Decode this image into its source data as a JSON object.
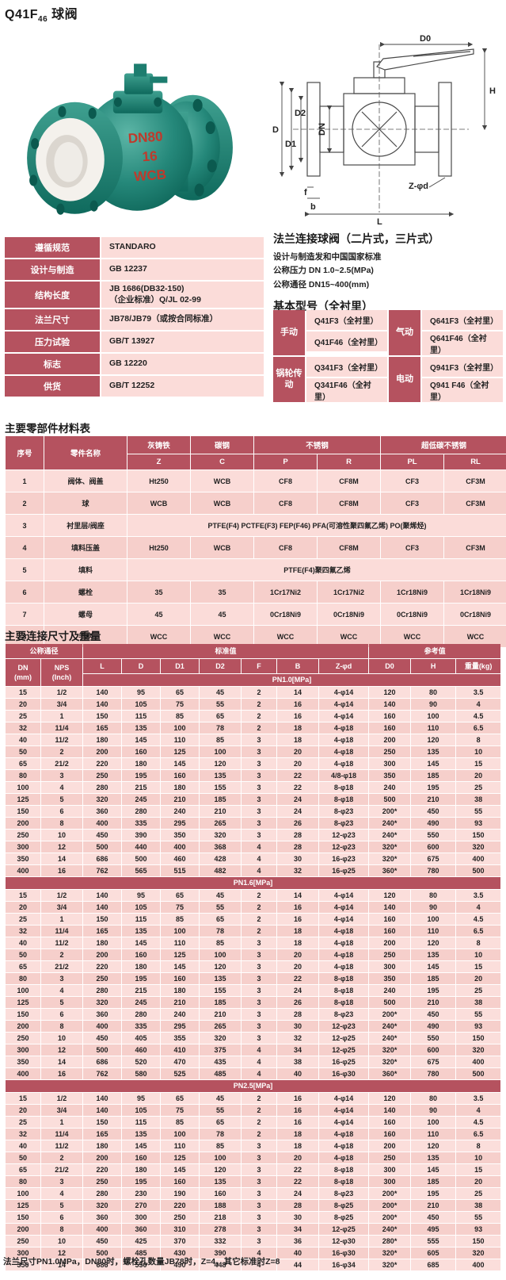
{
  "page_title": {
    "prefix": "Q41F",
    "sub": "46",
    "suffix": " 球阀"
  },
  "photo": {
    "markings": [
      "DN80",
      "16",
      "WCB"
    ]
  },
  "drawing": {
    "labels": [
      "D0",
      "H",
      "D",
      "D1",
      "D2",
      "DN",
      "Z-φd",
      "f",
      "b",
      "L"
    ]
  },
  "spec_table": {
    "rows": [
      {
        "label": "遵循规范",
        "value": [
          "STANDARO"
        ]
      },
      {
        "label": "设计与制造",
        "value": [
          "GB 12237"
        ]
      },
      {
        "label": "结构长度",
        "value": [
          "JB 1686(DB32-150)",
          "（企业标准）Q/JL 02-99"
        ]
      },
      {
        "label": "法兰尺寸",
        "value": [
          "JB78/JB79（或按合同标准）"
        ]
      },
      {
        "label": "压力试验",
        "value": [
          "GB/T 13927"
        ]
      },
      {
        "label": "标志",
        "value": [
          "GB 12220"
        ]
      },
      {
        "label": "供货",
        "value": [
          "GB/T 12252"
        ]
      }
    ]
  },
  "intro": {
    "heading": "法兰连接球阀（二片式，三片式）",
    "lines": [
      "设计与制造发和中国国家标准",
      "公称压力 DN 1.0~2.5(MPa)",
      "公称通径 DN15~400(mm)"
    ],
    "models_heading": "基本型号（全衬里）"
  },
  "models": {
    "groups": [
      {
        "label": "手动",
        "items": [
          "Q41F3（全衬里）",
          "Q41F46（全衬里）"
        ]
      },
      {
        "label": "气动",
        "items": [
          "Q641F3（全衬里）",
          "Q641F46（全衬里）"
        ]
      },
      {
        "label": "锅轮传动",
        "items": [
          "Q341F3（全衬里）",
          "Q341F46（全衬里）"
        ]
      },
      {
        "label": "电动",
        "items": [
          "Q941F3（全衬里）",
          "Q941 F46（全衬里）"
        ]
      }
    ]
  },
  "materials": {
    "title": "主要零部件材料表",
    "col_no": "序号",
    "col_name": "零件名称",
    "group_headers": [
      "灰铸铁",
      "碳钢",
      "不锈钢",
      "超低碳不锈钢"
    ],
    "code_headers": [
      "Z",
      "C",
      "P",
      "R",
      "PL",
      "RL"
    ],
    "rows": [
      {
        "no": "1",
        "name": "阀体、阀盖",
        "values": [
          "Ht250",
          "WCB",
          "CF8",
          "CF8M",
          "CF3",
          "CF3M"
        ]
      },
      {
        "no": "2",
        "name": "球",
        "values": [
          "WCB",
          "WCB",
          "CF8",
          "CF8M",
          "CF3",
          "CF3M"
        ]
      },
      {
        "no": "3",
        "name": "衬里层/阀座",
        "span": "PTFE(F4)  PCTFE(F3)  FEP(F46)    PFA(可溶性聚四氟乙烯)  PO(聚烯烃)"
      },
      {
        "no": "4",
        "name": "填料压盖",
        "values": [
          "Ht250",
          "WCB",
          "CF8",
          "CF8M",
          "CF3",
          "CF3M"
        ]
      },
      {
        "no": "5",
        "name": "填料",
        "span": "PTFE(F4)聚四氟乙烯"
      },
      {
        "no": "6",
        "name": "螺栓",
        "values": [
          "35",
          "35",
          "1Cr17Ni2",
          "1Cr17Ni2",
          "1Cr18Ni9",
          "1Cr18Ni9"
        ]
      },
      {
        "no": "7",
        "name": "螺母",
        "values": [
          "45",
          "45",
          "0Cr18Ni9",
          "0Cr18Ni9",
          "0Cr18Ni9",
          "0Cr18Ni9"
        ]
      },
      {
        "no": "8",
        "name": "手柄",
        "values": [
          "WCC",
          "WCC",
          "WCC",
          "WCC",
          "WCC",
          "WCC"
        ]
      }
    ]
  },
  "dims": {
    "title": "主要连接尺寸及重量",
    "groups": [
      "公称通径",
      "标准值",
      "参考值"
    ],
    "dn": [
      "DN",
      "(mm)"
    ],
    "nps": [
      "NPS",
      "(Inch)"
    ],
    "cols": [
      "L",
      "D",
      "D1",
      "D2",
      "F",
      "B",
      "Z-φd",
      "D0",
      "H",
      "重量(kg)"
    ],
    "sections": [
      {
        "band": "PN1.0[MPa]",
        "rows": [
          [
            "15",
            "1/2",
            "140",
            "95",
            "65",
            "45",
            "2",
            "14",
            "4-φ14",
            "120",
            "80",
            "3.5"
          ],
          [
            "20",
            "3/4",
            "140",
            "105",
            "75",
            "55",
            "2",
            "16",
            "4-φ14",
            "140",
            "90",
            "4"
          ],
          [
            "25",
            "1",
            "150",
            "115",
            "85",
            "65",
            "2",
            "16",
            "4-φ14",
            "160",
            "100",
            "4.5"
          ],
          [
            "32",
            "11/4",
            "165",
            "135",
            "100",
            "78",
            "2",
            "18",
            "4-φ18",
            "160",
            "110",
            "6.5"
          ],
          [
            "40",
            "11/2",
            "180",
            "145",
            "110",
            "85",
            "3",
            "18",
            "4-φ18",
            "200",
            "120",
            "8"
          ],
          [
            "50",
            "2",
            "200",
            "160",
            "125",
            "100",
            "3",
            "20",
            "4-φ18",
            "250",
            "135",
            "10"
          ],
          [
            "65",
            "21/2",
            "220",
            "180",
            "145",
            "120",
            "3",
            "20",
            "4-φ18",
            "300",
            "145",
            "15"
          ],
          [
            "80",
            "3",
            "250",
            "195",
            "160",
            "135",
            "3",
            "22",
            "4/8-φ18",
            "350",
            "185",
            "20"
          ],
          [
            "100",
            "4",
            "280",
            "215",
            "180",
            "155",
            "3",
            "22",
            "8-φ18",
            "240",
            "195",
            "25"
          ],
          [
            "125",
            "5",
            "320",
            "245",
            "210",
            "185",
            "3",
            "24",
            "8-φ18",
            "500",
            "210",
            "38"
          ],
          [
            "150",
            "6",
            "360",
            "280",
            "240",
            "210",
            "3",
            "24",
            "8-φ23",
            "200*",
            "450",
            "55"
          ],
          [
            "200",
            "8",
            "400",
            "335",
            "295",
            "265",
            "3",
            "26",
            "8-φ23",
            "240*",
            "490",
            "93"
          ],
          [
            "250",
            "10",
            "450",
            "390",
            "350",
            "320",
            "3",
            "28",
            "12-φ23",
            "240*",
            "550",
            "150"
          ],
          [
            "300",
            "12",
            "500",
            "440",
            "400",
            "368",
            "4",
            "28",
            "12-φ23",
            "320*",
            "600",
            "320"
          ],
          [
            "350",
            "14",
            "686",
            "500",
            "460",
            "428",
            "4",
            "30",
            "16-φ23",
            "320*",
            "675",
            "400"
          ],
          [
            "400",
            "16",
            "762",
            "565",
            "515",
            "482",
            "4",
            "32",
            "16-φ25",
            "360*",
            "780",
            "500"
          ]
        ]
      },
      {
        "band": "PN1.6[MPa]",
        "rows": [
          [
            "15",
            "1/2",
            "140",
            "95",
            "65",
            "45",
            "2",
            "14",
            "4-φ14",
            "120",
            "80",
            "3.5"
          ],
          [
            "20",
            "3/4",
            "140",
            "105",
            "75",
            "55",
            "2",
            "16",
            "4-φ14",
            "140",
            "90",
            "4"
          ],
          [
            "25",
            "1",
            "150",
            "115",
            "85",
            "65",
            "2",
            "16",
            "4-φ14",
            "160",
            "100",
            "4.5"
          ],
          [
            "32",
            "11/4",
            "165",
            "135",
            "100",
            "78",
            "2",
            "18",
            "4-φ18",
            "160",
            "110",
            "6.5"
          ],
          [
            "40",
            "11/2",
            "180",
            "145",
            "110",
            "85",
            "3",
            "18",
            "4-φ18",
            "200",
            "120",
            "8"
          ],
          [
            "50",
            "2",
            "200",
            "160",
            "125",
            "100",
            "3",
            "20",
            "4-φ18",
            "250",
            "135",
            "10"
          ],
          [
            "65",
            "21/2",
            "220",
            "180",
            "145",
            "120",
            "3",
            "20",
            "4-φ18",
            "300",
            "145",
            "15"
          ],
          [
            "80",
            "3",
            "250",
            "195",
            "160",
            "135",
            "3",
            "22",
            "8-φ18",
            "350",
            "185",
            "20"
          ],
          [
            "100",
            "4",
            "280",
            "215",
            "180",
            "155",
            "3",
            "24",
            "8-φ18",
            "240",
            "195",
            "25"
          ],
          [
            "125",
            "5",
            "320",
            "245",
            "210",
            "185",
            "3",
            "26",
            "8-φ18",
            "500",
            "210",
            "38"
          ],
          [
            "150",
            "6",
            "360",
            "280",
            "240",
            "210",
            "3",
            "28",
            "8-φ23",
            "200*",
            "450",
            "55"
          ],
          [
            "200",
            "8",
            "400",
            "335",
            "295",
            "265",
            "3",
            "30",
            "12-φ23",
            "240*",
            "490",
            "93"
          ],
          [
            "250",
            "10",
            "450",
            "405",
            "355",
            "320",
            "3",
            "32",
            "12-φ25",
            "240*",
            "550",
            "150"
          ],
          [
            "300",
            "12",
            "500",
            "460",
            "410",
            "375",
            "4",
            "34",
            "12-φ25",
            "320*",
            "600",
            "320"
          ],
          [
            "350",
            "14",
            "686",
            "520",
            "470",
            "435",
            "4",
            "38",
            "16-φ25",
            "320*",
            "675",
            "400"
          ],
          [
            "400",
            "16",
            "762",
            "580",
            "525",
            "485",
            "4",
            "40",
            "16-φ30",
            "360*",
            "780",
            "500"
          ]
        ]
      },
      {
        "band": "PN2.5[MPa]",
        "rows": [
          [
            "15",
            "1/2",
            "140",
            "95",
            "65",
            "45",
            "2",
            "16",
            "4-φ14",
            "120",
            "80",
            "3.5"
          ],
          [
            "20",
            "3/4",
            "140",
            "105",
            "75",
            "55",
            "2",
            "16",
            "4-φ14",
            "140",
            "90",
            "4"
          ],
          [
            "25",
            "1",
            "150",
            "115",
            "85",
            "65",
            "2",
            "16",
            "4-φ14",
            "160",
            "100",
            "4.5"
          ],
          [
            "32",
            "11/4",
            "165",
            "135",
            "100",
            "78",
            "2",
            "18",
            "4-φ18",
            "160",
            "110",
            "6.5"
          ],
          [
            "40",
            "11/2",
            "180",
            "145",
            "110",
            "85",
            "3",
            "18",
            "4-φ18",
            "200",
            "120",
            "8"
          ],
          [
            "50",
            "2",
            "200",
            "160",
            "125",
            "100",
            "3",
            "20",
            "4-φ18",
            "250",
            "135",
            "10"
          ],
          [
            "65",
            "21/2",
            "220",
            "180",
            "145",
            "120",
            "3",
            "22",
            "8-φ18",
            "300",
            "145",
            "15"
          ],
          [
            "80",
            "3",
            "250",
            "195",
            "160",
            "135",
            "3",
            "22",
            "8-φ18",
            "300",
            "185",
            "20"
          ],
          [
            "100",
            "4",
            "280",
            "230",
            "190",
            "160",
            "3",
            "24",
            "8-φ23",
            "200*",
            "195",
            "25"
          ],
          [
            "125",
            "5",
            "320",
            "270",
            "220",
            "188",
            "3",
            "28",
            "8-φ25",
            "200*",
            "210",
            "38"
          ],
          [
            "150",
            "6",
            "360",
            "300",
            "250",
            "218",
            "3",
            "30",
            "8-φ25",
            "200*",
            "450",
            "55"
          ],
          [
            "200",
            "8",
            "400",
            "360",
            "310",
            "278",
            "3",
            "34",
            "12-φ25",
            "240*",
            "495",
            "93"
          ],
          [
            "250",
            "10",
            "450",
            "425",
            "370",
            "332",
            "3",
            "36",
            "12-φ30",
            "280*",
            "555",
            "150"
          ],
          [
            "300",
            "12",
            "500",
            "485",
            "430",
            "390",
            "4",
            "40",
            "16-φ30",
            "320*",
            "605",
            "320"
          ],
          [
            "350",
            "14",
            "686",
            "550",
            "490",
            "448",
            "4",
            "44",
            "16-φ34",
            "320*",
            "685",
            "400"
          ]
        ]
      }
    ]
  },
  "footnote": "法兰尺寸PN1.0MPa，DN80时，螺栓孔数量JB78时，Z=4，其它标准时Z=8",
  "colors": {
    "header_red": "#b5525f",
    "row_pink": "#fbdedb",
    "row_pink_alt": "#f6cfcb",
    "valve_teal": "#25887a",
    "marking_red": "#c0392b"
  }
}
